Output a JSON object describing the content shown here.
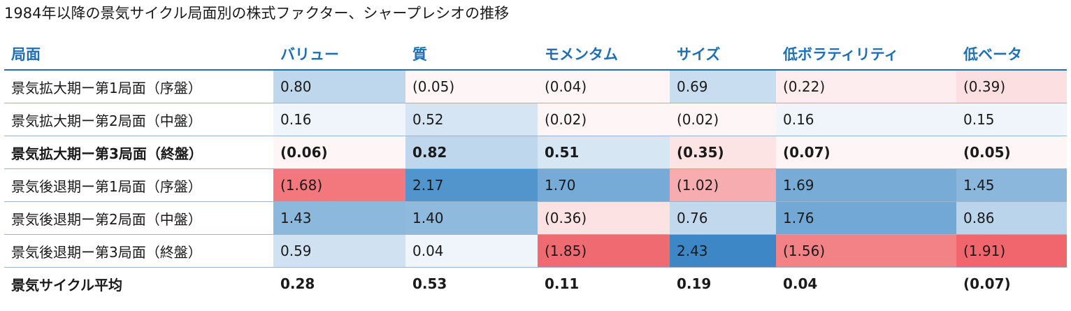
{
  "title": "1984年以降の景気サイクル局面別の株式ファクター、シャープレシオの推移",
  "colors": {
    "header_text": "#1f6fb5",
    "positive_max": "#3d87c6",
    "negative_max": "#f0666c"
  },
  "chart_data": {
    "type": "table",
    "title": "1984年以降の景気サイクル局面別の株式ファクター、シャープレシオの推移",
    "row_header": "局面",
    "columns": [
      "バリュー",
      "質",
      "モメンタム",
      "サイズ",
      "低ボラティリティ",
      "低ベータ"
    ],
    "rows": [
      {
        "label": "景気拡大期ー第1局面（序盤）",
        "bold": false,
        "shaded": true,
        "values": [
          0.8,
          -0.05,
          -0.04,
          0.69,
          -0.22,
          -0.39
        ],
        "display": [
          "0.80",
          "(0.05)",
          "(0.04)",
          "0.69",
          "(0.22)",
          "(0.39)"
        ]
      },
      {
        "label": "景気拡大期ー第2局面（中盤）",
        "bold": false,
        "shaded": true,
        "values": [
          0.16,
          0.52,
          -0.02,
          -0.02,
          0.16,
          0.15
        ],
        "display": [
          "0.16",
          "0.52",
          "(0.02)",
          "(0.02)",
          "0.16",
          "0.15"
        ]
      },
      {
        "label": "景気拡大期ー第3局面（終盤）",
        "bold": true,
        "shaded": true,
        "values": [
          -0.06,
          0.82,
          0.51,
          -0.35,
          -0.07,
          -0.05
        ],
        "display": [
          "(0.06)",
          "0.82",
          "0.51",
          "(0.35)",
          "(0.07)",
          "(0.05)"
        ]
      },
      {
        "label": "景気後退期ー第1局面（序盤）",
        "bold": false,
        "shaded": true,
        "values": [
          -1.68,
          2.17,
          1.7,
          -1.02,
          1.69,
          1.45
        ],
        "display": [
          "(1.68)",
          "2.17",
          "1.70",
          "(1.02)",
          "1.69",
          "1.45"
        ]
      },
      {
        "label": "景気後退期ー第2局面（中盤）",
        "bold": false,
        "shaded": true,
        "values": [
          1.43,
          1.4,
          -0.36,
          0.76,
          1.76,
          0.86
        ],
        "display": [
          "1.43",
          "1.40",
          "(0.36)",
          "0.76",
          "1.76",
          "0.86"
        ]
      },
      {
        "label": "景気後退期ー第3局面（終盤）",
        "bold": false,
        "shaded": true,
        "values": [
          0.59,
          0.04,
          -1.85,
          2.43,
          -1.56,
          -1.91
        ],
        "display": [
          "0.59",
          "0.04",
          "(1.85)",
          "2.43",
          "(1.56)",
          "(1.91)"
        ]
      },
      {
        "label": "景気サイクル平均",
        "bold": true,
        "shaded": false,
        "values": [
          0.28,
          0.53,
          0.11,
          0.19,
          0.04,
          -0.07
        ],
        "display": [
          "0.28",
          "0.53",
          "0.11",
          "0.19",
          "0.04",
          "(0.07)"
        ]
      }
    ]
  }
}
